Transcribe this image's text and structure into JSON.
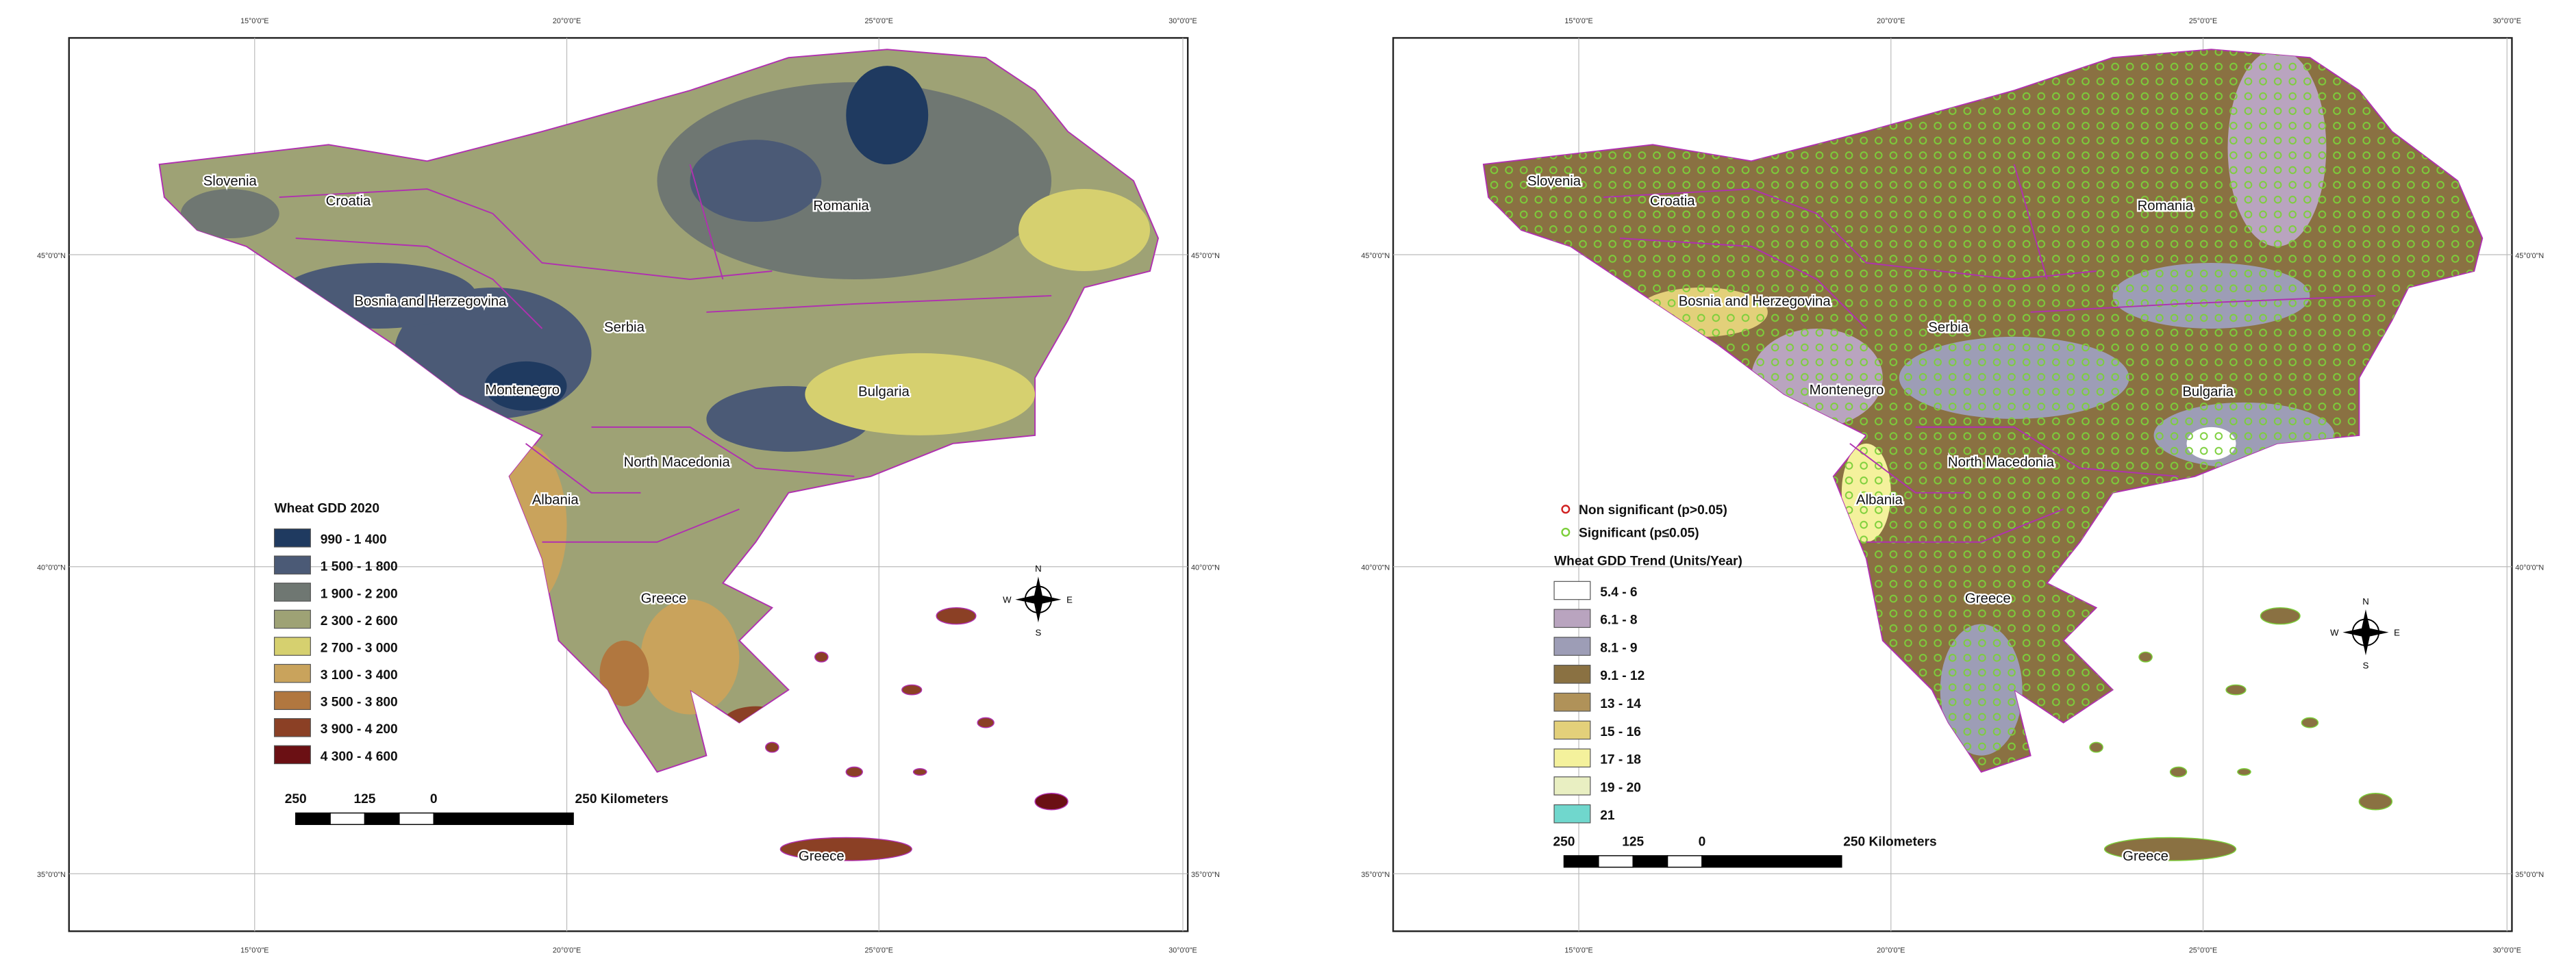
{
  "panels": [
    {
      "graticule": {
        "top": [
          "15°0'0\"E",
          "20°0'0\"E",
          "25°0'0\"E",
          "30°0'0\"E"
        ],
        "bottom": [
          "15°0'0\"E",
          "20°0'0\"E",
          "25°0'0\"E",
          "30°0'0\"E"
        ],
        "left": [
          "45°0'0\"N",
          "40°0'0\"N",
          "35°0'0\"N"
        ],
        "right": [
          "45°0'0\"N",
          "40°0'0\"N",
          "35°0'0\"N"
        ]
      },
      "countries": [
        "Slovenia",
        "Croatia",
        "Bosnia and Herzegovina",
        "Serbia",
        "Romania",
        "Montenegro",
        "Bulgaria",
        "North Macedonia",
        "Albania",
        "Greece",
        "Greece"
      ],
      "legend": {
        "title": "Wheat GDD 2020",
        "items": [
          {
            "label": "990 - 1 400",
            "color": "#1f3a60"
          },
          {
            "label": "1 500 - 1 800",
            "color": "#4b5a76"
          },
          {
            "label": "1 900 - 2 200",
            "color": "#6f7772"
          },
          {
            "label": "2 300 - 2 600",
            "color": "#9ea275"
          },
          {
            "label": "2 700 - 3 000",
            "color": "#d6d06f"
          },
          {
            "label": "3 100 - 3 400",
            "color": "#c9a35c"
          },
          {
            "label": "3 500 - 3 800",
            "color": "#b1773f"
          },
          {
            "label": "3 900 - 4 200",
            "color": "#8b4025"
          },
          {
            "label": "4 300 - 4 600",
            "color": "#6b1014"
          }
        ]
      },
      "scale_bar": [
        "250",
        "125",
        "0",
        "250 Kilometers"
      ],
      "north_arrow": [
        "N",
        "E",
        "S",
        "W"
      ]
    },
    {
      "graticule": {
        "top": [
          "15°0'0\"E",
          "20°0'0\"E",
          "25°0'0\"E",
          "30°0'0\"E"
        ],
        "bottom": [
          "15°0'0\"E",
          "20°0'0\"E",
          "25°0'0\"E",
          "30°0'0\"E"
        ],
        "left": [
          "45°0'0\"N",
          "40°0'0\"N",
          "35°0'0\"N"
        ],
        "right": [
          "45°0'0\"N",
          "40°0'0\"N",
          "35°0'0\"N"
        ]
      },
      "countries": [
        "Slovenia",
        "Croatia",
        "Bosnia and Herzegovina",
        "Serbia",
        "Romania",
        "Montenegro",
        "Bulgaria",
        "North Macedonia",
        "Albania",
        "Greece",
        "Greece"
      ],
      "points_legend": [
        {
          "label": "Non significant (p>0.05)",
          "color": "#d02020"
        },
        {
          "label": "Significant (p≤0.05)",
          "color": "#7ccf3a"
        }
      ],
      "legend": {
        "title": "Wheat GDD Trend (Units/Year)",
        "items": [
          {
            "label": "5.4 - 6",
            "color": "#ffffff"
          },
          {
            "label": "6.1 - 8",
            "color": "#b9a4bf"
          },
          {
            "label": "8.1 - 9",
            "color": "#9d9db6"
          },
          {
            "label": "9.1 - 12",
            "color": "#8a7142"
          },
          {
            "label": "13 - 14",
            "color": "#b09259"
          },
          {
            "label": "15 - 16",
            "color": "#e3d07a"
          },
          {
            "label": "17 - 18",
            "color": "#f4f19c"
          },
          {
            "label": "19 - 20",
            "color": "#e9efc2"
          },
          {
            "label": "21",
            "color": "#70d7cd"
          }
        ]
      },
      "scale_bar": [
        "250",
        "125",
        "0",
        "250 Kilometers"
      ],
      "north_arrow": [
        "N",
        "E",
        "S",
        "W"
      ]
    }
  ]
}
